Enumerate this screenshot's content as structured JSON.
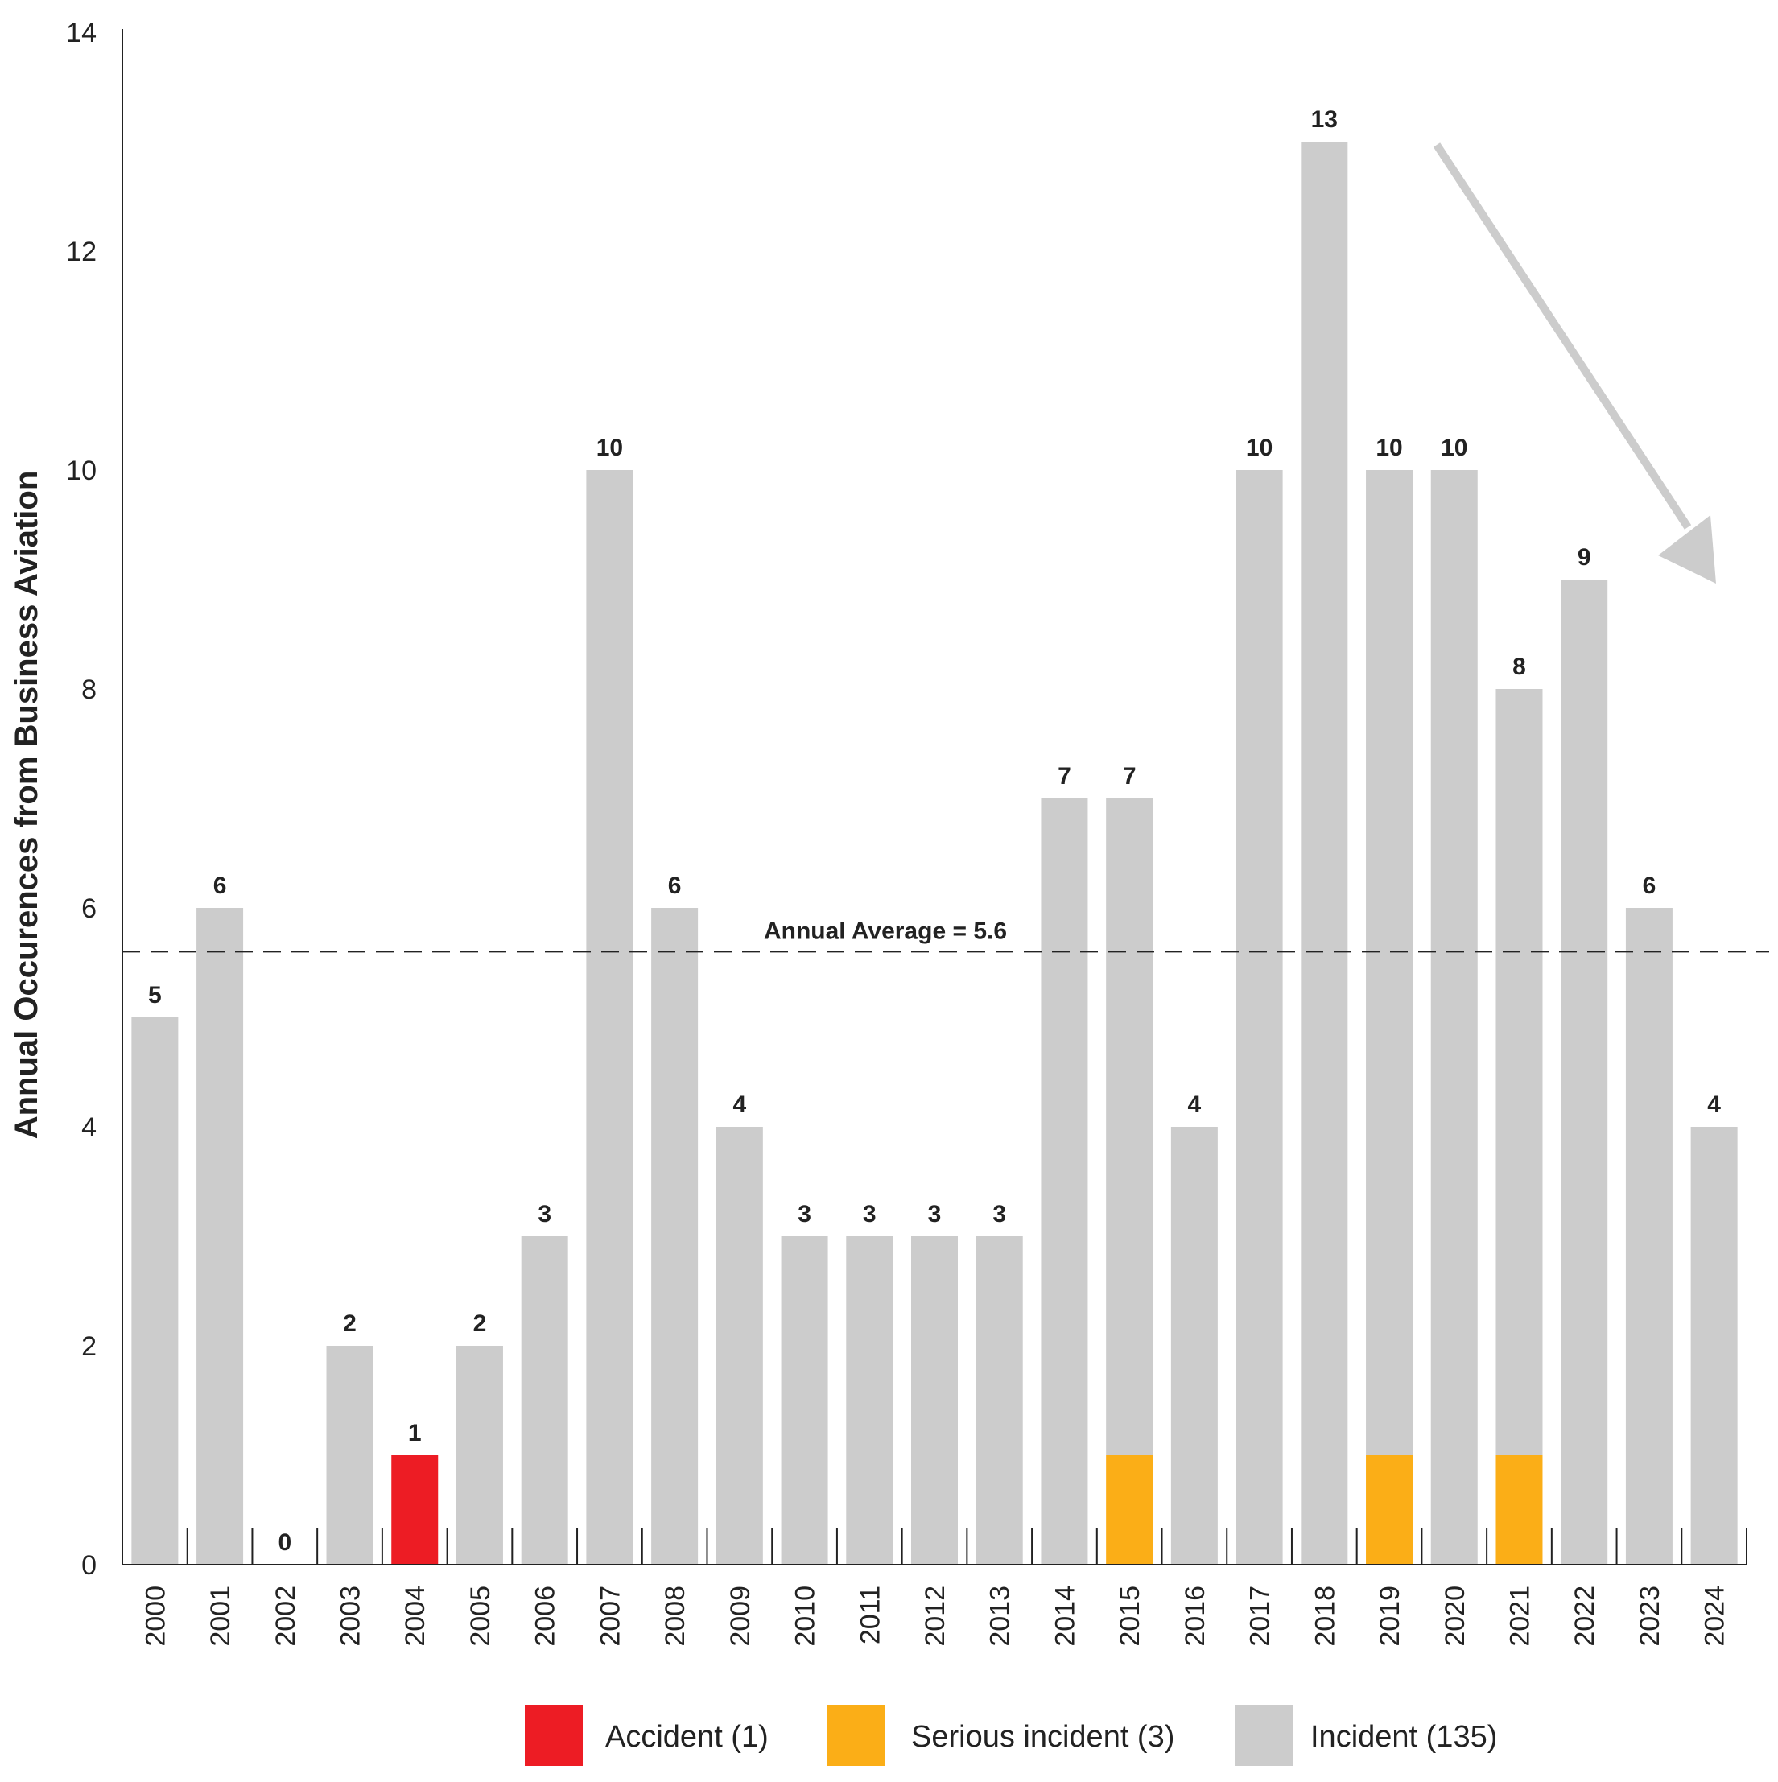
{
  "chart_data": {
    "type": "bar",
    "stacked": true,
    "ylabel": "Annual Occurences from Business Aviation",
    "xlabel": "",
    "ylim": [
      0,
      14
    ],
    "yticks": [
      0,
      2,
      4,
      6,
      8,
      10,
      12,
      14
    ],
    "categories": [
      "2000",
      "2001",
      "2002",
      "2003",
      "2004",
      "2005",
      "2006",
      "2007",
      "2008",
      "2009",
      "2010",
      "2011",
      "2012",
      "2013",
      "2014",
      "2015",
      "2016",
      "2017",
      "2018",
      "2019",
      "2020",
      "2021",
      "2022",
      "2023",
      "2024"
    ],
    "series": [
      {
        "name": "Accident (1)",
        "color": "#ED1C24",
        "values": [
          0,
          0,
          0,
          0,
          1,
          0,
          0,
          0,
          0,
          0,
          0,
          0,
          0,
          0,
          0,
          0,
          0,
          0,
          0,
          0,
          0,
          0,
          0,
          0,
          0
        ]
      },
      {
        "name": "Serious incident (3)",
        "color": "#FBAE17",
        "values": [
          0,
          0,
          0,
          0,
          0,
          0,
          0,
          0,
          0,
          0,
          0,
          0,
          0,
          0,
          0,
          1,
          0,
          0,
          0,
          1,
          0,
          1,
          0,
          0,
          0
        ]
      },
      {
        "name": "Incident (135)",
        "color": "#CCCCCC",
        "values": [
          5,
          6,
          0,
          2,
          0,
          2,
          3,
          10,
          6,
          4,
          3,
          3,
          3,
          3,
          7,
          6,
          4,
          10,
          13,
          9,
          10,
          7,
          9,
          6,
          4
        ]
      }
    ],
    "totals": [
      5,
      6,
      0,
      2,
      1,
      2,
      3,
      10,
      6,
      4,
      3,
      3,
      3,
      3,
      7,
      7,
      4,
      10,
      13,
      10,
      10,
      8,
      9,
      6,
      4
    ],
    "reference_line": {
      "value": 5.6,
      "label": "Annual Average = 5.6",
      "style": "dashed"
    },
    "annotation": "downward trend arrow",
    "grid": false,
    "legend_placement": "bottom-center"
  }
}
